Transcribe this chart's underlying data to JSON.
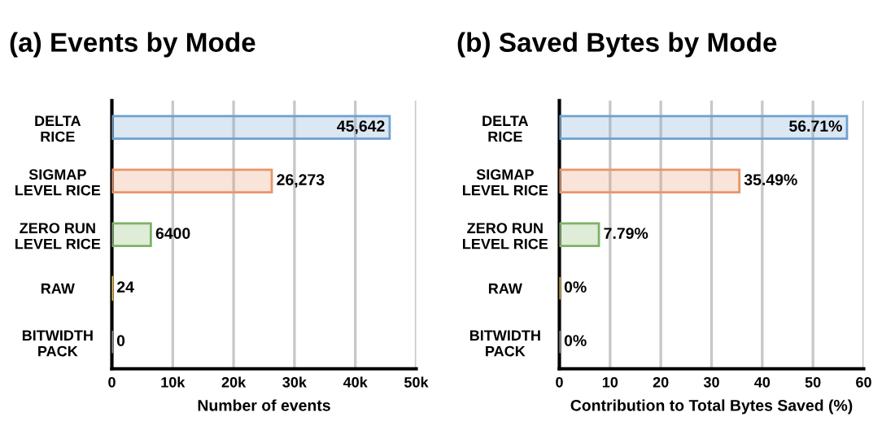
{
  "chart_data": [
    {
      "type": "bar",
      "orientation": "horizontal",
      "title": "(a) Events by Mode",
      "xlabel": "Number of events",
      "categories": [
        "DELTA\nRICE",
        "SIGMAP\nLEVEL RICE",
        "ZERO RUN\nLEVEL RICE",
        "RAW",
        "BITWIDTH\nPACK"
      ],
      "values": [
        45642,
        26273,
        6400,
        24,
        0
      ],
      "colors": [
        "#6fa0d0",
        "#e8956a",
        "#7cb365",
        "#f0c040",
        "#a0a0a0"
      ],
      "value_labels": [
        "45,642",
        "26,273",
        "6400",
        "24",
        "0"
      ],
      "xlim": [
        0,
        50000
      ],
      "xticks": [
        0,
        {
          "value": 10000,
          "label": "10k"
        },
        {
          "value": 20000,
          "label": "20k"
        },
        {
          "value": 30000,
          "label": "30k"
        },
        {
          "value": 40000,
          "label": "40k"
        },
        {
          "value": 50000,
          "label": "50k"
        }
      ],
      "grid": "x",
      "legend": false
    },
    {
      "type": "bar",
      "orientation": "horizontal",
      "title": "(b) Saved Bytes by Mode",
      "xlabel": "Contribution to Total Bytes Saved (%)",
      "categories": [
        "DELTA\nRICE",
        "SIGMAP\nLEVEL RICE",
        "ZERO RUN\nLEVEL RICE",
        "RAW",
        "BITWIDTH\nPACK"
      ],
      "values": [
        56.71,
        35.49,
        7.79,
        0,
        0
      ],
      "colors": [
        "#6fa0d0",
        "#e8956a",
        "#7cb365",
        "#f0c040",
        "#a0a0a0"
      ],
      "value_labels": [
        "56.71%",
        "35.49%",
        "7.79%",
        "0%",
        "0%"
      ],
      "xlim": [
        0,
        60
      ],
      "xticks": [
        0,
        10,
        20,
        30,
        40,
        50,
        60
      ],
      "grid": "x",
      "legend": false
    }
  ]
}
